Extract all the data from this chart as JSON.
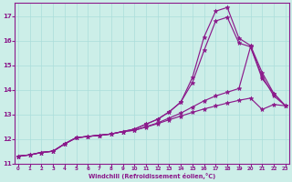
{
  "xlabel": "Windchill (Refroidissement éolien,°C)",
  "bg_color": "#cceee8",
  "grid_color": "#aaddda",
  "line_color": "#8b1a8b",
  "x_ticks": [
    0,
    1,
    2,
    3,
    4,
    5,
    6,
    7,
    8,
    9,
    10,
    11,
    12,
    13,
    14,
    15,
    16,
    17,
    18,
    19,
    20,
    21,
    22,
    23
  ],
  "y_ticks": [
    11,
    12,
    13,
    14,
    15,
    16,
    17
  ],
  "xlim": [
    0,
    23
  ],
  "ylim": [
    11.0,
    17.5
  ],
  "line1_y": [
    11.3,
    11.35,
    11.45,
    11.5,
    11.8,
    12.05,
    12.1,
    12.15,
    12.2,
    12.3,
    12.4,
    12.6,
    12.8,
    13.1,
    13.5,
    14.5,
    16.15,
    17.2,
    17.35,
    16.1,
    15.8,
    14.7,
    13.85,
    13.35
  ],
  "line2_y": [
    11.3,
    11.35,
    11.45,
    11.5,
    11.8,
    12.05,
    12.1,
    12.15,
    12.2,
    12.3,
    12.4,
    12.6,
    12.8,
    13.1,
    13.5,
    14.3,
    15.6,
    16.8,
    16.95,
    15.9,
    15.75,
    14.55,
    13.75,
    13.35
  ],
  "line3_y": [
    11.3,
    11.35,
    11.45,
    11.5,
    11.8,
    12.05,
    12.1,
    12.15,
    12.2,
    12.3,
    12.35,
    12.5,
    12.65,
    12.85,
    13.05,
    13.3,
    13.55,
    13.75,
    13.9,
    14.05,
    15.75,
    14.45,
    13.85,
    13.35
  ],
  "line4_y": [
    11.3,
    11.35,
    11.45,
    11.5,
    11.8,
    12.05,
    12.1,
    12.15,
    12.2,
    12.3,
    12.35,
    12.48,
    12.62,
    12.78,
    12.93,
    13.08,
    13.22,
    13.34,
    13.46,
    13.57,
    13.66,
    13.2,
    13.4,
    13.35
  ]
}
